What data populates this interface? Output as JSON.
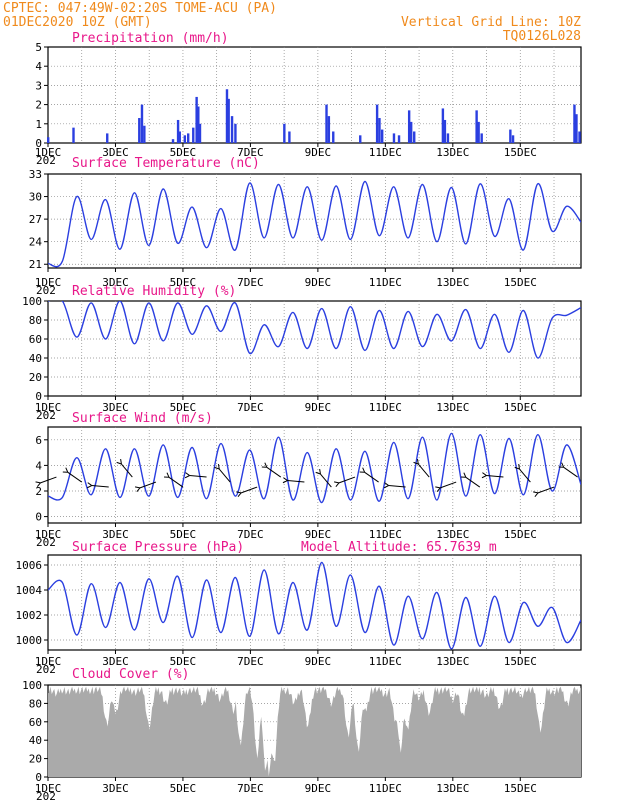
{
  "header": {
    "line1": "CPTEC:   047:49W-02:20S   TOME-ACU (PA)",
    "line2_left": "01DEC2020 10Z (GMT)",
    "line2_right": "Vertical Grid Line: 10Z",
    "line3_right": "TQ0126L028"
  },
  "colors": {
    "header": "#f08a1c",
    "title": "#e8178a",
    "series": "#2b3fe0",
    "cloud": "#aaaaaa"
  },
  "x_ticks": [
    "1DEC",
    "3DEC",
    "5DEC",
    "7DEC",
    "9DEC",
    "11DEC",
    "13DEC",
    "15DEC"
  ],
  "year_fragment": "202",
  "model_altitude": "Model Altitude: 65.7639 m",
  "chart_data": [
    {
      "type": "bar",
      "title": "Precipitation (mm/h)",
      "ylim": [
        0,
        5
      ],
      "yticks": [
        "0",
        "1",
        "2",
        "3",
        "4",
        "5"
      ],
      "xlim_days": [
        0,
        15.8
      ],
      "events": [
        [
          0.0,
          0.3
        ],
        [
          0.75,
          0.8
        ],
        [
          1.75,
          0.5
        ],
        [
          2.7,
          1.3
        ],
        [
          2.78,
          2.0
        ],
        [
          2.85,
          0.9
        ],
        [
          3.7,
          0.2
        ],
        [
          3.85,
          1.2
        ],
        [
          3.9,
          0.6
        ],
        [
          4.05,
          0.4
        ],
        [
          4.15,
          0.5
        ],
        [
          4.3,
          0.8
        ],
        [
          4.4,
          2.4
        ],
        [
          4.45,
          1.9
        ],
        [
          4.5,
          1.0
        ],
        [
          5.3,
          2.8
        ],
        [
          5.35,
          2.3
        ],
        [
          5.45,
          1.4
        ],
        [
          5.55,
          1.0
        ],
        [
          7.0,
          1.0
        ],
        [
          7.15,
          0.6
        ],
        [
          8.25,
          2.0
        ],
        [
          8.32,
          1.4
        ],
        [
          8.45,
          0.6
        ],
        [
          9.25,
          0.4
        ],
        [
          9.75,
          2.0
        ],
        [
          9.82,
          1.3
        ],
        [
          9.9,
          0.7
        ],
        [
          10.25,
          0.5
        ],
        [
          10.4,
          0.4
        ],
        [
          10.7,
          1.7
        ],
        [
          10.76,
          1.1
        ],
        [
          10.85,
          0.6
        ],
        [
          11.7,
          1.8
        ],
        [
          11.76,
          1.2
        ],
        [
          11.85,
          0.5
        ],
        [
          12.7,
          1.7
        ],
        [
          12.76,
          1.1
        ],
        [
          12.85,
          0.5
        ],
        [
          13.7,
          0.7
        ],
        [
          13.78,
          0.4
        ],
        [
          15.6,
          2.0
        ],
        [
          15.66,
          1.5
        ],
        [
          15.75,
          0.6
        ]
      ]
    },
    {
      "type": "line",
      "title": "Surface Temperature (nC)",
      "ylim": [
        20.5,
        33
      ],
      "yticks": [
        "21",
        "24",
        "27",
        "30",
        "33"
      ],
      "y_values": [
        21.1,
        21.4,
        30.0,
        24.3,
        29.6,
        23.0,
        30.5,
        23.5,
        31.0,
        23.8,
        28.6,
        23.2,
        28.4,
        22.9,
        31.8,
        24.5,
        31.6,
        24.5,
        31.3,
        24.2,
        31.4,
        24.3,
        32.0,
        24.8,
        31.3,
        24.5,
        31.6,
        24.0,
        31.2,
        23.7,
        31.7,
        24.7,
        29.7,
        22.9,
        31.7,
        25.4,
        28.7,
        26.6
      ]
    },
    {
      "type": "line",
      "title": "Relative Humidity (%)",
      "ylim": [
        0,
        100
      ],
      "yticks": [
        "0",
        "20",
        "40",
        "60",
        "80",
        "100"
      ],
      "y_values": [
        100,
        100,
        62,
        98,
        60,
        100,
        55,
        98,
        58,
        98,
        65,
        95,
        68,
        98,
        45,
        75,
        52,
        88,
        50,
        92,
        50,
        94,
        48,
        90,
        50,
        89,
        52,
        86,
        58,
        91,
        50,
        86,
        46,
        90,
        40,
        82,
        85,
        93
      ]
    },
    {
      "type": "line",
      "title": "Surface Wind (m/s)",
      "ylim": [
        -0.5,
        7
      ],
      "yticks": [
        "0",
        "2",
        "4",
        "6"
      ],
      "y_values": [
        1.6,
        1.5,
        4.6,
        1.7,
        5.3,
        1.5,
        5.3,
        1.6,
        5.6,
        1.5,
        5.4,
        1.4,
        5.7,
        1.6,
        5.2,
        1.4,
        6.2,
        1.3,
        5.0,
        1.1,
        5.3,
        1.3,
        5.1,
        1.2,
        5.8,
        1.4,
        6.2,
        1.3,
        6.5,
        1.6,
        6.4,
        1.8,
        6.1,
        1.7,
        6.4,
        2.0,
        5.6,
        2.5
      ],
      "arrows_days": [
        0.25,
        1.0,
        1.8,
        2.5,
        3.2,
        4.0,
        4.7,
        5.4,
        6.2,
        6.9,
        7.6,
        8.4,
        9.1,
        9.8,
        10.6,
        11.3,
        12.1,
        12.8,
        13.5,
        14.3,
        15.0,
        15.7
      ]
    },
    {
      "type": "line",
      "title": "Surface Pressure (hPa)",
      "ylim": [
        999.2,
        1006.8
      ],
      "yticks": [
        "1000",
        "1002",
        "1004",
        "1006"
      ],
      "y_values": [
        1004.0,
        1004.6,
        1000.4,
        1004.5,
        1001.0,
        1004.6,
        1000.8,
        1004.9,
        1001.4,
        1005.1,
        1000.2,
        1004.8,
        1000.6,
        1005.0,
        1000.3,
        1005.6,
        1000.5,
        1004.6,
        1000.8,
        1006.2,
        1001.1,
        1005.2,
        1000.6,
        1004.3,
        999.6,
        1003.5,
        1000.1,
        1003.8,
        999.3,
        1003.4,
        999.5,
        1003.5,
        999.8,
        1003.0,
        1001.1,
        1002.6,
        999.8,
        1001.6
      ]
    },
    {
      "type": "area",
      "title": "Cloud Cover (%)",
      "ylim": [
        0,
        100
      ],
      "yticks": [
        "0",
        "20",
        "40",
        "60",
        "80",
        "100"
      ],
      "dips": [
        [
          0.25,
          90
        ],
        [
          0.6,
          92
        ],
        [
          1.0,
          94
        ],
        [
          1.75,
          58
        ],
        [
          2.0,
          70
        ],
        [
          2.6,
          92
        ],
        [
          3.0,
          55
        ],
        [
          3.5,
          80
        ],
        [
          4.0,
          90
        ],
        [
          4.6,
          80
        ],
        [
          5.1,
          85
        ],
        [
          5.5,
          72
        ],
        [
          5.7,
          35
        ],
        [
          6.2,
          25
        ],
        [
          6.45,
          8
        ],
        [
          6.55,
          3
        ],
        [
          6.7,
          15
        ],
        [
          7.3,
          80
        ],
        [
          7.7,
          55
        ],
        [
          8.4,
          80
        ],
        [
          8.9,
          45
        ],
        [
          9.2,
          30
        ],
        [
          9.4,
          70
        ],
        [
          10.0,
          90
        ],
        [
          10.3,
          60
        ],
        [
          10.45,
          30
        ],
        [
          10.65,
          50
        ],
        [
          11.0,
          85
        ],
        [
          11.3,
          70
        ],
        [
          12.0,
          85
        ],
        [
          12.3,
          65
        ],
        [
          13.0,
          88
        ],
        [
          13.4,
          75
        ],
        [
          14.0,
          88
        ],
        [
          14.6,
          52
        ],
        [
          15.0,
          92
        ],
        [
          15.4,
          80
        ]
      ]
    }
  ]
}
